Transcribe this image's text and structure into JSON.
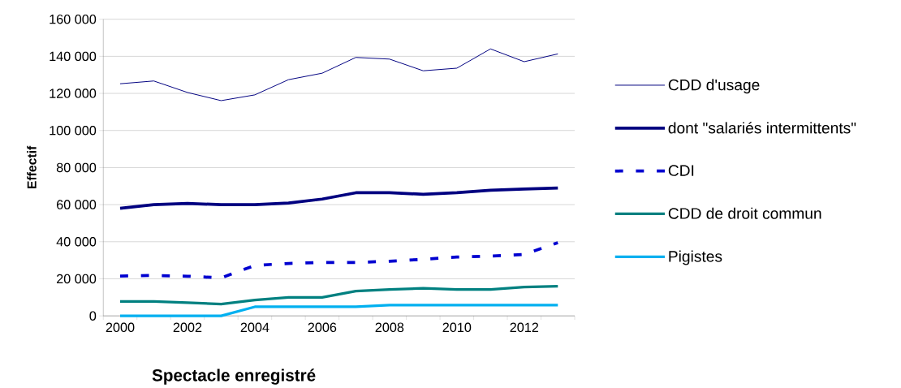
{
  "chart_data": {
    "type": "line",
    "xlabel": "Spectacle enregistré",
    "ylabel": "Effectif",
    "categories": [
      "2000",
      null,
      "2002",
      null,
      "2004",
      null,
      "2006",
      null,
      "2008",
      null,
      "2010",
      null,
      "2012",
      null
    ],
    "series": [
      {
        "name": "CDD d'usage",
        "color": "#000080",
        "values": [
          125200,
          126700,
          120500,
          116100,
          119200,
          127400,
          130900,
          139400,
          138500,
          132200,
          133600,
          144000,
          137100,
          141300
        ]
      },
      {
        "name": "dont \"salariés intermittents\"",
        "color": "#000080",
        "values": [
          58000,
          60000,
          60600,
          60000,
          60000,
          60900,
          63000,
          66400,
          66400,
          65600,
          66400,
          67800,
          68400,
          69000
        ]
      },
      {
        "name": "CDI",
        "color": "#0000d0",
        "line_style": "dashed",
        "values": [
          21500,
          21800,
          21400,
          20500,
          27200,
          28300,
          28800,
          28800,
          29500,
          30500,
          31700,
          32200,
          33100,
          39500
        ]
      },
      {
        "name": "CDD de droit commun",
        "color": "#008080",
        "values": [
          7800,
          7800,
          7100,
          6400,
          8500,
          10000,
          10000,
          13400,
          14200,
          14900,
          14200,
          14200,
          15500,
          16000
        ]
      },
      {
        "name": "Pigistes",
        "color": "#00b0f0",
        "values": [
          0,
          0,
          0,
          0,
          4900,
          4900,
          4900,
          4900,
          5800,
          5800,
          5800,
          5800,
          5800,
          5800
        ]
      }
    ],
    "ylim": [
      0,
      160000
    ],
    "yticks": [
      0,
      {
        "value": 20000,
        "label": "20 000"
      },
      {
        "value": 40000,
        "label": "40 000"
      },
      {
        "value": 60000,
        "label": "60 000"
      },
      {
        "value": 80000,
        "label": "80 000"
      },
      {
        "value": 100000,
        "label": "100 000"
      },
      {
        "value": 120000,
        "label": "120 000"
      },
      {
        "value": 140000,
        "label": "140 000"
      },
      {
        "value": 160000,
        "label": "160 000"
      }
    ],
    "grid": "y",
    "legend": "right"
  }
}
